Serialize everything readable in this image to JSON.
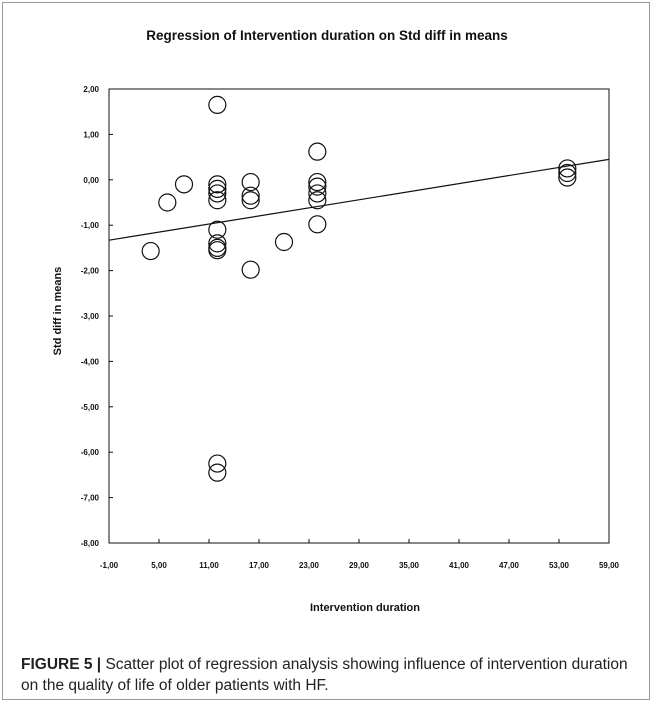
{
  "caption": {
    "label": "FIGURE 5 |",
    "text": "Scatter plot of regression analysis showing influence of intervention duration on the quality of life of older patients with HF."
  },
  "chart_data": {
    "type": "scatter",
    "title": "Regression of Intervention duration on Std diff in means",
    "xlabel": "Intervention duration",
    "ylabel": "Std diff in means",
    "xlim": [
      -1,
      59
    ],
    "ylim": [
      -8,
      2
    ],
    "x_ticks": [
      -1,
      5,
      11,
      17,
      23,
      29,
      35,
      41,
      47,
      53,
      59
    ],
    "x_tick_labels": [
      "-1,00",
      "5,00",
      "11,00",
      "17,00",
      "23,00",
      "29,00",
      "35,00",
      "41,00",
      "47,00",
      "53,00",
      "59,00"
    ],
    "y_ticks": [
      2,
      1,
      0,
      -1,
      -2,
      -3,
      -4,
      -5,
      -6,
      -7,
      -8
    ],
    "y_tick_labels": [
      "2,00",
      "1,00",
      "0,00",
      "-1,00",
      "-2,00",
      "-3,00",
      "-4,00",
      "-5,00",
      "-6,00",
      "-7,00",
      "-8,00"
    ],
    "grid": false,
    "legend": "none",
    "points": [
      {
        "x": 4,
        "y": -1.57
      },
      {
        "x": 6,
        "y": -0.5
      },
      {
        "x": 8,
        "y": -0.1
      },
      {
        "x": 12,
        "y": 1.65
      },
      {
        "x": 12,
        "y": -0.1
      },
      {
        "x": 12,
        "y": -0.2
      },
      {
        "x": 12,
        "y": -0.3
      },
      {
        "x": 12,
        "y": -0.45
      },
      {
        "x": 12,
        "y": -1.1
      },
      {
        "x": 12,
        "y": -1.4
      },
      {
        "x": 12,
        "y": -1.5
      },
      {
        "x": 12,
        "y": -1.55
      },
      {
        "x": 12,
        "y": -6.25
      },
      {
        "x": 12,
        "y": -6.45
      },
      {
        "x": 16,
        "y": -0.05
      },
      {
        "x": 16,
        "y": -0.35
      },
      {
        "x": 16,
        "y": -0.45
      },
      {
        "x": 16,
        "y": -1.98
      },
      {
        "x": 20,
        "y": -1.37
      },
      {
        "x": 24,
        "y": 0.62
      },
      {
        "x": 24,
        "y": -0.05
      },
      {
        "x": 24,
        "y": -0.15
      },
      {
        "x": 24,
        "y": -0.3
      },
      {
        "x": 24,
        "y": -0.45
      },
      {
        "x": 24,
        "y": -0.98
      },
      {
        "x": 54,
        "y": 0.25
      },
      {
        "x": 54,
        "y": 0.15
      },
      {
        "x": 54,
        "y": 0.05
      }
    ],
    "regression_line": {
      "x": [
        -1,
        59
      ],
      "y": [
        -1.33,
        0.45
      ]
    },
    "marker": "open-circle",
    "colors": {
      "ink": "#111111",
      "frame": "#9a9a9a"
    }
  }
}
